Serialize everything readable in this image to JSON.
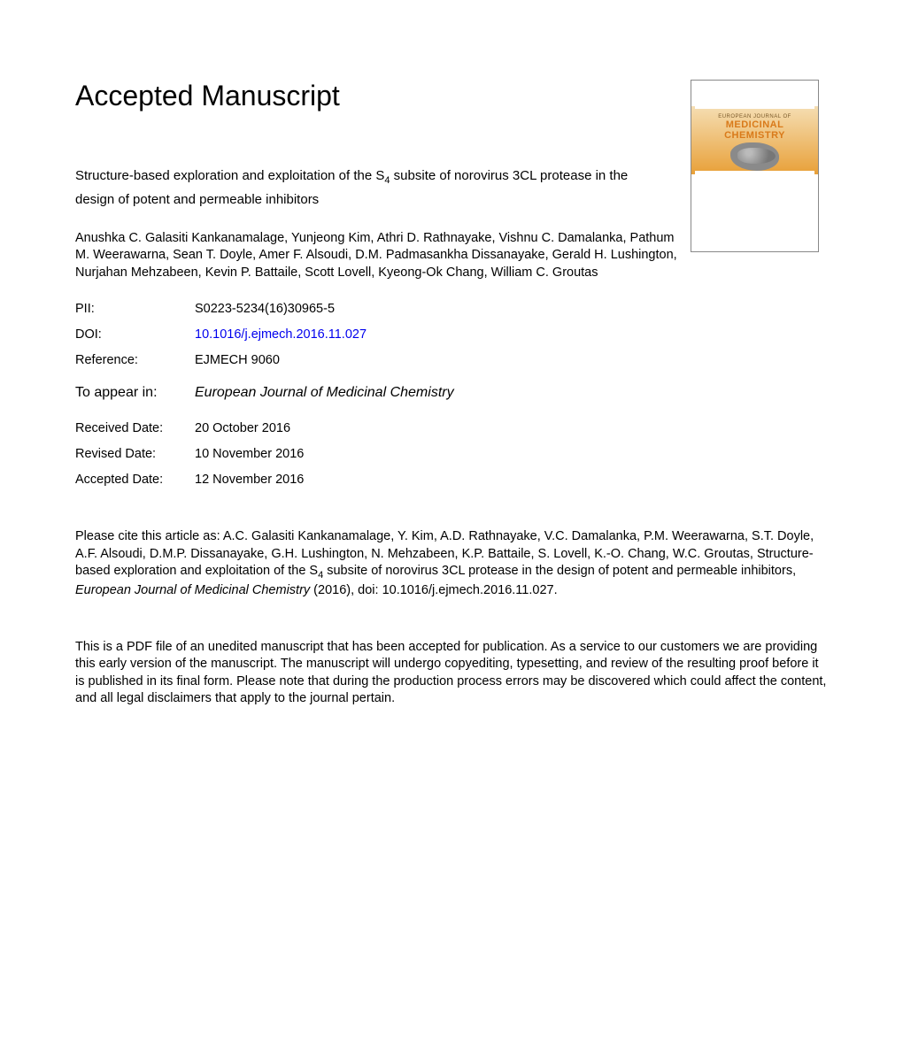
{
  "header": {
    "title": "Accepted Manuscript"
  },
  "cover": {
    "journal_sup": "EUROPEAN JOURNAL OF",
    "journal_line1": "MEDICINAL",
    "journal_line2": "CHEMISTRY"
  },
  "article": {
    "title_pre": "Structure-based exploration and exploitation of the S",
    "title_sub": "4",
    "title_post": " subsite of norovirus 3CL protease in the design of potent and permeable inhibitors"
  },
  "authors": "Anushka C. Galasiti Kankanamalage, Yunjeong Kim, Athri D. Rathnayake, Vishnu C. Damalanka, Pathum M. Weerawarna, Sean T. Doyle, Amer F. Alsoudi, D.M. Padmasankha Dissanayake, Gerald H. Lushington, Nurjahan Mehzabeen, Kevin P. Battaile, Scott Lovell, Kyeong-Ok Chang, William C. Groutas",
  "meta": {
    "pii_label": "PII:",
    "pii_value": "S0223-5234(16)30965-5",
    "doi_label": "DOI:",
    "doi_value": "10.1016/j.ejmech.2016.11.027",
    "ref_label": "Reference:",
    "ref_value": "EJMECH 9060",
    "appear_label": "To appear in:",
    "appear_value": "European Journal of Medicinal Chemistry",
    "received_label": "Received Date:",
    "received_value": "20 October 2016",
    "revised_label": "Revised Date:",
    "revised_value": "10 November 2016",
    "accepted_label": "Accepted Date:",
    "accepted_value": "12 November 2016"
  },
  "citation": {
    "prefix": "Please cite this article as: A.C. Galasiti Kankanamalage, Y. Kim, A.D. Rathnayake, V.C. Damalanka, P.M. Weerawarna, S.T. Doyle, A.F. Alsoudi, D.M.P. Dissanayake, G.H. Lushington, N. Mehzabeen, K.P. Battaile, S. Lovell, K.-O. Chang, W.C. Groutas, Structure-based exploration and exploitation of the S",
    "sub": "4",
    "mid": " subsite of norovirus 3CL protease in the design of potent and permeable inhibitors, ",
    "journal": "European Journal of Medicinal Chemistry",
    "suffix": " (2016), doi: 10.1016/j.ejmech.2016.11.027."
  },
  "disclaimer": "This is a PDF file of an unedited manuscript that has been accepted for publication. As a service to our customers we are providing this early version of the manuscript. The manuscript will undergo copyediting, typesetting, and review of the resulting proof before it is published in its final form. Please note that during the production process errors may be discovered which could affect the content, and all legal disclaimers that apply to the journal pertain."
}
